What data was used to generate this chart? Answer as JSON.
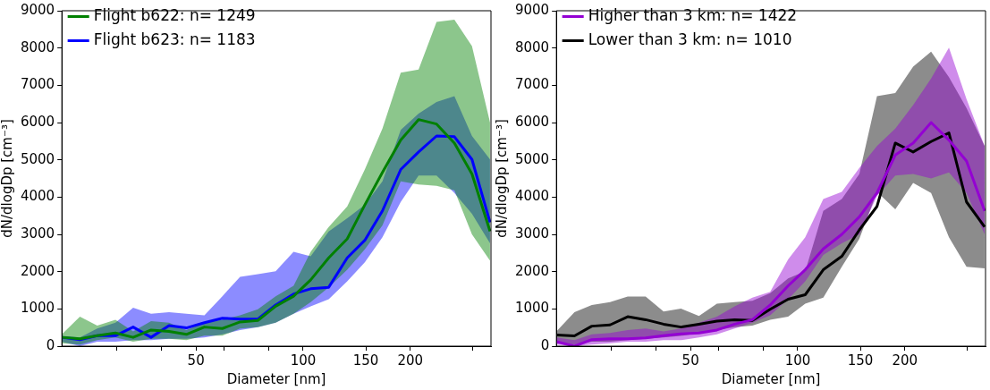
{
  "chart_data": [
    {
      "type": "line",
      "xlabel": "Diameter [nm]",
      "ylabel": "dN/dlogDp [cm⁻³]",
      "log": "x",
      "grid": false,
      "legend": "top left",
      "marker": "none",
      "line_style": "solid",
      "xlim": [
        21,
        337
      ],
      "ylim": [
        0,
        9000
      ],
      "xticks": [
        {
          "value": 30,
          "label": null
        },
        {
          "value": 40,
          "label": null
        },
        50,
        {
          "value": 60,
          "label": null
        },
        {
          "value": 80,
          "label": null
        },
        100,
        150,
        200,
        {
          "value": 300,
          "label": null
        }
      ],
      "yticks": [
        0,
        1000,
        2000,
        3000,
        4000,
        5000,
        6000,
        7000,
        8000,
        9000
      ],
      "x": [
        21,
        23.6,
        26.4,
        29.7,
        33.3,
        37.4,
        42,
        47,
        52.8,
        59.3,
        66.5,
        74.6,
        83.7,
        94,
        105,
        118,
        133,
        149,
        167,
        188,
        211,
        237,
        266,
        298,
        335
      ],
      "series": [
        {
          "name": "Flight b622: n= 1249",
          "color": "#008000",
          "values": [
            237,
            200,
            280,
            355,
            237,
            434,
            395,
            316,
            513,
            474,
            650,
            690,
            1070,
            1340,
            1780,
            2370,
            2880,
            3790,
            4660,
            5530,
            6080,
            5960,
            5450,
            4620,
            3080
          ],
          "lower": [
            80,
            40,
            160,
            237,
            120,
            200,
            200,
            160,
            280,
            280,
            474,
            513,
            630,
            870,
            1180,
            1580,
            2050,
            2600,
            3240,
            4420,
            4340,
            4300,
            4180,
            3000,
            2290
          ],
          "upper": [
            316,
            790,
            550,
            710,
            395,
            670,
            630,
            434,
            630,
            710,
            830,
            990,
            1340,
            1620,
            2530,
            3200,
            3750,
            4740,
            5840,
            7340,
            7420,
            8700,
            8760,
            8050,
            6000
          ]
        },
        {
          "name": "Flight b623: n= 1183",
          "color": "#0000ff",
          "values": [
            237,
            175,
            280,
            280,
            513,
            237,
            553,
            490,
            630,
            750,
            726,
            726,
            1105,
            1400,
            1540,
            1580,
            2370,
            2840,
            3630,
            4740,
            5210,
            5640,
            5620,
            5010,
            3320
          ],
          "lower": [
            120,
            0,
            120,
            120,
            160,
            160,
            200,
            200,
            237,
            316,
            434,
            513,
            630,
            870,
            1070,
            1260,
            1740,
            2250,
            2920,
            3870,
            4580,
            4580,
            4110,
            3550,
            2760
          ],
          "upper": [
            276,
            237,
            474,
            630,
            1030,
            870,
            910,
            870,
            830,
            1340,
            1860,
            1930,
            2010,
            2530,
            2410,
            3080,
            3430,
            3790,
            4420,
            5800,
            6240,
            6550,
            6710,
            5640,
            5010
          ]
        }
      ]
    },
    {
      "type": "line",
      "xlabel": "Diameter [nm]",
      "ylabel": "dN/dlogDp [cm⁻³]",
      "log": "x",
      "grid": false,
      "legend": "top left",
      "marker": "none",
      "line_style": "solid",
      "xlim": [
        21,
        337
      ],
      "ylim": [
        0,
        9000
      ],
      "xticks": [
        {
          "value": 30,
          "label": null
        },
        {
          "value": 40,
          "label": null
        },
        50,
        {
          "value": 60,
          "label": null
        },
        {
          "value": 80,
          "label": null
        },
        100,
        150,
        200,
        {
          "value": 300,
          "label": null
        }
      ],
      "yticks": [
        0,
        1000,
        2000,
        3000,
        4000,
        5000,
        6000,
        7000,
        8000,
        9000
      ],
      "x": [
        21,
        23.6,
        26.4,
        29.7,
        33.3,
        37.4,
        42,
        47,
        52.8,
        59.3,
        66.5,
        74.6,
        83.7,
        94,
        105,
        118,
        133,
        149,
        167,
        188,
        211,
        237,
        266,
        298,
        335
      ],
      "series": [
        {
          "name": "Higher than 3 km: n= 1422",
          "color": "#9400d3",
          "values": [
            120,
            0,
            175,
            200,
            200,
            220,
            280,
            330,
            355,
            434,
            590,
            710,
            1105,
            1620,
            2050,
            2610,
            3000,
            3470,
            4110,
            5130,
            5450,
            6000,
            5530,
            4970,
            3630
          ],
          "lower": [
            40,
            0,
            40,
            80,
            120,
            120,
            160,
            160,
            237,
            316,
            474,
            630,
            830,
            1260,
            1740,
            2450,
            2760,
            3000,
            4030,
            4580,
            4620,
            4500,
            4660,
            4110,
            3000
          ],
          "upper": [
            237,
            160,
            316,
            355,
            434,
            474,
            395,
            474,
            630,
            790,
            1070,
            1300,
            1460,
            2330,
            2920,
            3950,
            4140,
            4780,
            5370,
            5840,
            6470,
            7180,
            8010,
            6630,
            5370
          ]
        },
        {
          "name": "Lower than 3 km: n= 1010",
          "color": "#000000",
          "values": [
            300,
            276,
            537,
            570,
            790,
            710,
            590,
            513,
            590,
            670,
            710,
            690,
            990,
            1260,
            1380,
            2050,
            2410,
            3120,
            3750,
            5450,
            5210,
            5490,
            5720,
            3870,
            3200
          ],
          "lower": [
            80,
            40,
            120,
            120,
            160,
            200,
            237,
            276,
            355,
            434,
            513,
            553,
            710,
            790,
            1140,
            1300,
            2130,
            2880,
            4140,
            3670,
            4380,
            4110,
            2920,
            2130,
            2090
          ],
          "upper": [
            395,
            910,
            1105,
            1180,
            1330,
            1330,
            930,
            1010,
            810,
            1140,
            1180,
            1220,
            1420,
            1820,
            2010,
            3630,
            3950,
            4620,
            6710,
            6790,
            7500,
            7900,
            7220,
            6390,
            5370
          ]
        }
      ]
    }
  ]
}
